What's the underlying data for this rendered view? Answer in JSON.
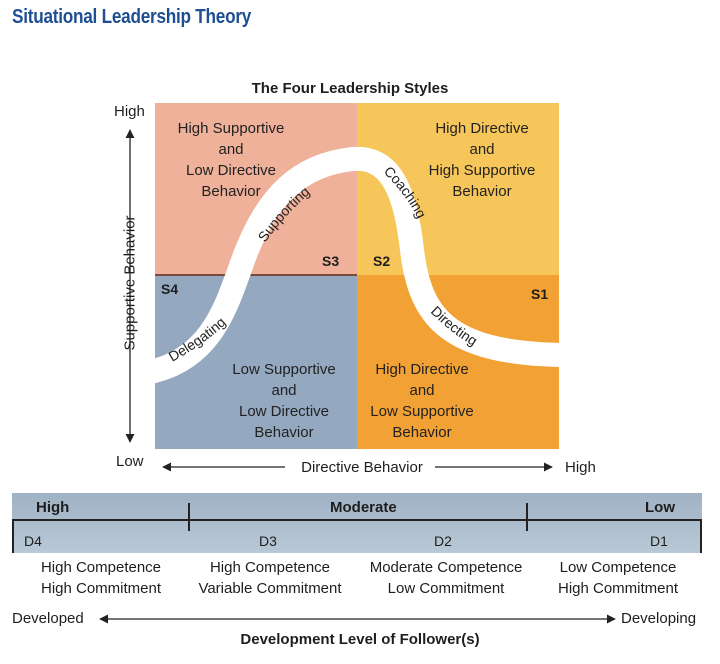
{
  "title": "Situational Leadership Theory",
  "diagram": {
    "title": "The Four Leadership Styles",
    "axes": {
      "y_label": "Supportive Behavior",
      "y_high": "High",
      "y_low": "Low",
      "x_label": "Directive Behavior",
      "x_high": "High"
    },
    "quadrants": {
      "top_left": {
        "lines": [
          "High Supportive",
          "and",
          "Low Directive",
          "Behavior"
        ],
        "color": "#efb19a"
      },
      "top_right": {
        "lines": [
          "High Directive",
          "and",
          "High Supportive",
          "Behavior"
        ],
        "color": "#f7c65a"
      },
      "bottom_left": {
        "lines": [
          "Low Supportive",
          "and",
          "Low Directive",
          "Behavior"
        ],
        "color": "#94a8c0"
      },
      "bottom_right": {
        "lines": [
          "High Directive",
          "and",
          "Low Supportive",
          "Behavior"
        ],
        "color": "#f2a234"
      }
    },
    "style_codes": {
      "s1": "S1",
      "s2": "S2",
      "s3": "S3",
      "s4": "S4"
    },
    "curve_labels": {
      "delegating": "Delegating",
      "supporting": "Supporting",
      "coaching": "Coaching",
      "directing": "Directing"
    }
  },
  "development": {
    "headers": {
      "high": "High",
      "moderate": "Moderate",
      "low": "Low"
    },
    "levels": [
      "D4",
      "D3",
      "D2",
      "D1"
    ],
    "descriptions": [
      {
        "line1": "High Competence",
        "line2": "High Commitment"
      },
      {
        "line1": "High Competence",
        "line2": "Variable Commitment"
      },
      {
        "line1": "Moderate Competence",
        "line2": "Low Commitment"
      },
      {
        "line1": "Low Competence",
        "line2": "High Commitment"
      }
    ],
    "arrow_left": "Developed",
    "arrow_right": "Developing",
    "footer": "Development Level of Follower(s)",
    "band_color": "#a9bccd"
  }
}
